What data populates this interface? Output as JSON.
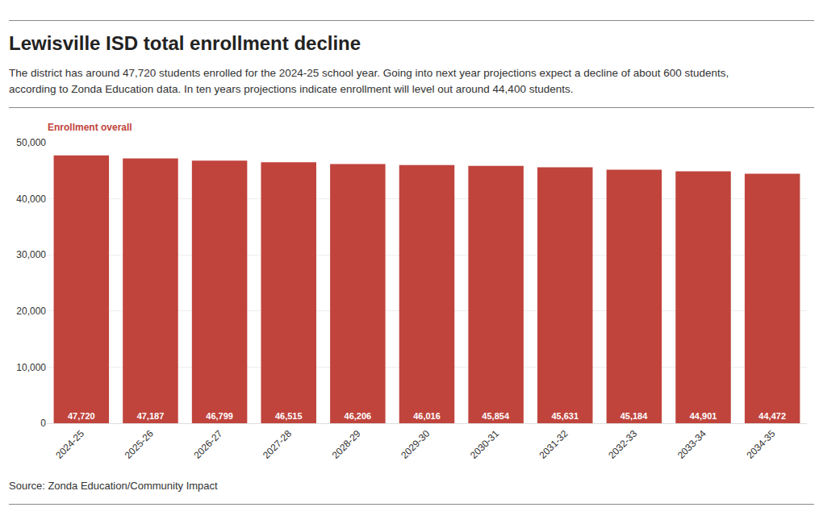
{
  "chart_data": {
    "type": "bar",
    "title": "Lewisville ISD total enrollment decline",
    "subtitle": [
      "The district has around 47,720 students enrolled for the 2024-25 school year. Going into next year projections expect a decline of about 600 students,",
      "according to Zonda Education data. In ten years projections indicate enrollment will level out around 44,400 students."
    ],
    "ylabel": "Enrollment overall",
    "source": "Source: Zonda Education/Community Impact",
    "categories": [
      "2024-25",
      "2025-26",
      "2026-27",
      "2027-28",
      "2028-29",
      "2029-30",
      "2030-31",
      "2031-32",
      "2032-33",
      "2033-34",
      "2034-35"
    ],
    "values": [
      47720,
      47187,
      46799,
      46515,
      46206,
      46016,
      45854,
      45631,
      45184,
      44901,
      44472
    ],
    "value_labels": [
      "47,720",
      "47,187",
      "46,799",
      "46,515",
      "46,206",
      "46,016",
      "45,854",
      "45,631",
      "45,184",
      "44,901",
      "44,472"
    ],
    "color": "#c0443c",
    "data_labels": true,
    "ylim": [
      0,
      50000
    ],
    "yticks": [
      0,
      {
        "value": 10000,
        "label": "10,000"
      },
      {
        "value": 20000,
        "label": "20,000"
      },
      {
        "value": 30000,
        "label": "30,000"
      },
      {
        "value": 40000,
        "label": "40,000"
      },
      {
        "value": 50000,
        "label": "50,000"
      }
    ],
    "grid": true
  }
}
